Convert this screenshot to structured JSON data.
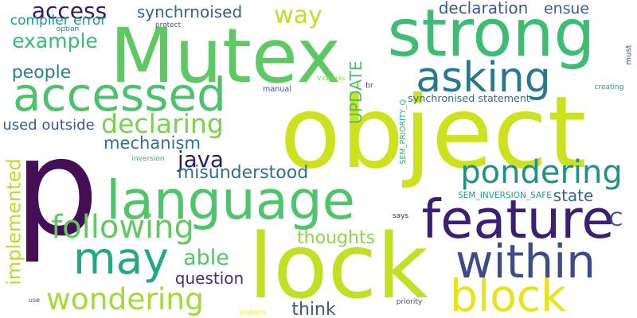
{
  "words": [
    {
      "text": "p",
      "color": "#440f56"
    },
    {
      "text": "object",
      "color": "#cde11d"
    },
    {
      "text": "Mutex",
      "color": "#5ec962"
    },
    {
      "text": "strong",
      "color": "#3dbc74"
    },
    {
      "text": "lock",
      "color": "#c2df23"
    },
    {
      "text": "language",
      "color": "#50c46a"
    },
    {
      "text": "feature",
      "color": "#3b1f73"
    },
    {
      "text": "within",
      "color": "#3e4a89"
    },
    {
      "text": "block",
      "color": "#e8e419"
    },
    {
      "text": "accessed",
      "color": "#4cc26c"
    },
    {
      "text": "asking",
      "color": "#2a788e"
    },
    {
      "text": "may",
      "color": "#22a884"
    },
    {
      "text": "pondering",
      "color": "#21908d"
    },
    {
      "text": "following",
      "color": "#60ca60"
    },
    {
      "text": "wondering",
      "color": "#a2da37"
    },
    {
      "text": "implemented",
      "color": "#b5de2b"
    },
    {
      "text": "access",
      "color": "#39176e"
    },
    {
      "text": "declaring",
      "color": "#7ad151"
    },
    {
      "text": "way",
      "color": "#bddf26"
    },
    {
      "text": "java",
      "color": "#2d1c5f"
    },
    {
      "text": "able",
      "color": "#52c569"
    },
    {
      "text": "example",
      "color": "#38b977"
    },
    {
      "text": "mechanism",
      "color": "#2c728e"
    },
    {
      "text": "misunderstood",
      "color": "#2e6e8e"
    },
    {
      "text": "thoughts",
      "color": "#8bd646"
    },
    {
      "text": "question",
      "color": "#472d7b"
    },
    {
      "text": "think",
      "color": "#38598c"
    },
    {
      "text": "people",
      "color": "#26828e"
    },
    {
      "text": "state",
      "color": "#33638d"
    },
    {
      "text": "ensue",
      "color": "#33638d"
    },
    {
      "text": "declaration",
      "color": "#38598c"
    },
    {
      "text": "synchrnoised",
      "color": "#355f8d"
    },
    {
      "text": "UPDATE",
      "color": "#4ac16d"
    },
    {
      "text": "used outside",
      "color": "#38598c"
    },
    {
      "text": "compiler error",
      "color": "#1f9a8a"
    },
    {
      "text": "C",
      "color": "#39568c"
    },
    {
      "text": "synchronised statement",
      "color": "#2f6c8e"
    },
    {
      "text": "SEM_INVERSION_SAFE",
      "color": "#1f9e89"
    },
    {
      "text": "SEM_PRIORITY_Q",
      "color": "#2ab07f"
    },
    {
      "text": "protect",
      "color": "#3e4c8a"
    },
    {
      "text": "option",
      "color": "#2a788e"
    },
    {
      "text": "manual",
      "color": "#3b528b"
    },
    {
      "text": "VxWorks",
      "color": "#8fd744"
    },
    {
      "text": "br",
      "color": "#453781"
    },
    {
      "text": "inversion",
      "color": "#2db27d"
    },
    {
      "text": "creating",
      "color": "#1fa187"
    },
    {
      "text": "must",
      "color": "#3b528b"
    },
    {
      "text": "says",
      "color": "#481b6d"
    },
    {
      "text": "use",
      "color": "#3f4788"
    },
    {
      "text": "problem",
      "color": "#fde725"
    },
    {
      "text": "priority",
      "color": "#3e4989"
    }
  ]
}
